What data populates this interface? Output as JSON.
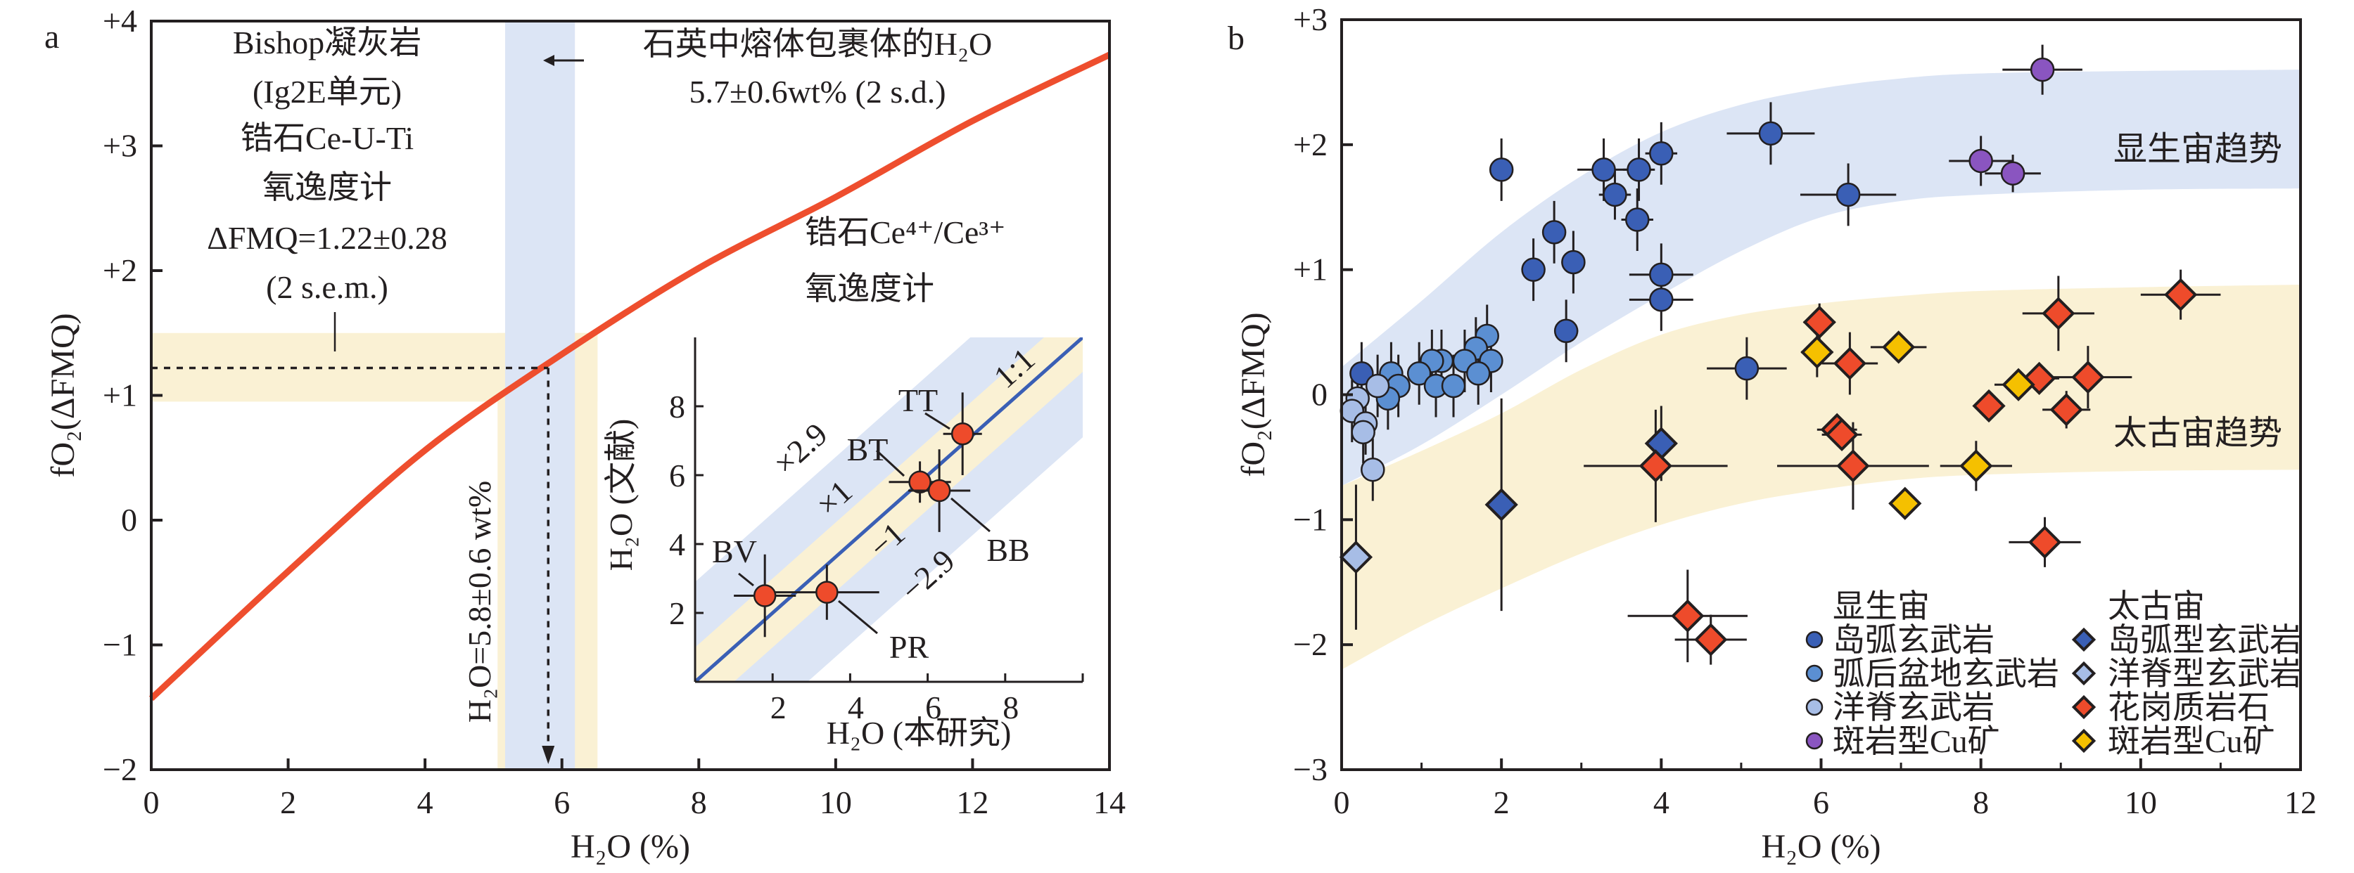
{
  "colors": {
    "curve": "#ee4e2e",
    "band_blue": "#dce5f5",
    "band_yellow": "#faf1d4",
    "one_to_one": "#3a5fb5",
    "island_arc": "#3a5fb5",
    "back_arc": "#5b8fd2",
    "mor": "#a7bde6",
    "porphyry_phan": "#8a55c0",
    "granitoid": "#ee4b2b",
    "porphyry_arch": "#f5c000",
    "inset_point": "#ee4b2b"
  },
  "chart_data": [
    {
      "panel": "a",
      "type": "line",
      "xlabel": "H₂O (%)",
      "ylabel": "fO₂(ΔFMQ)",
      "xlim": [
        0,
        14
      ],
      "ylim": [
        -2,
        4
      ],
      "xticks": [
        0,
        2,
        4,
        6,
        8,
        10,
        12,
        14
      ],
      "xtick_labels": [
        "0",
        "2",
        "4",
        "6",
        "8",
        "10",
        "12",
        "14"
      ],
      "yticks": [
        -2,
        -1,
        0,
        1,
        2,
        3,
        4
      ],
      "ytick_labels": [
        "−2",
        "−1",
        "0",
        "+1",
        "+2",
        "+3",
        "+4"
      ],
      "grid": false,
      "curve": {
        "name": "锆石Ce⁴⁺/Ce³⁺氧逸度计",
        "x": [
          0,
          2,
          4,
          6,
          8,
          10,
          12,
          14
        ],
        "y": [
          -1.43,
          -0.41,
          0.56,
          1.33,
          2.02,
          2.59,
          3.2,
          3.73
        ]
      },
      "fmq_band": [
        0.95,
        1.5
      ],
      "h2o_band_melt_inclusion": [
        5.17,
        6.19
      ],
      "h2o_band_result": [
        5.06,
        6.52
      ],
      "readout": {
        "x": 5.8,
        "y": 1.22
      },
      "annotations": {
        "bishop": [
          "Bishop凝灰岩",
          "(Ig2E单元)",
          "锆石Ce-U-Ti",
          "氧逸度计",
          "ΔFMQ=1.22±0.28",
          "(2 s.e.m.)"
        ],
        "melt_inclusion": [
          "石英中熔体包裹体的H₂O",
          "5.7±0.6wt% (2 s.d.)"
        ],
        "oxybarometer": [
          "锆石Ce⁴⁺/Ce³⁺",
          "氧逸度计"
        ],
        "result": "H₂O=5.8±0.6 wt%"
      },
      "inset": {
        "type": "scatter",
        "xlabel": "H₂O (本研究)",
        "ylabel": "H₂O (文献)",
        "xlim": [
          0,
          10
        ],
        "ylim": [
          0,
          10
        ],
        "xticks": [
          2,
          4,
          6,
          8
        ],
        "xtick_labels": [
          "2",
          "4",
          "6",
          "8"
        ],
        "yticks": [
          2,
          4,
          6,
          8
        ],
        "ytick_labels": [
          "2",
          "4",
          "6",
          "8"
        ],
        "band_inner": 1,
        "band_outer": 2.9,
        "line_labels": {
          "one_to_one": "1:1",
          "plus_outer": "×2.9",
          "plus_inner": "×1",
          "minus_inner": "−1",
          "minus_outer": "−2.9"
        },
        "points": [
          {
            "label": "BV",
            "x": 1.8,
            "y": 2.5,
            "xerr": 0.8,
            "yerr": 1.2
          },
          {
            "label": "PR",
            "x": 3.4,
            "y": 2.6,
            "xerr": 1.35,
            "yerr": 0.8
          },
          {
            "label": "BT",
            "x": 5.8,
            "y": 5.8,
            "xerr": 0.8,
            "yerr": 0.6
          },
          {
            "label": "BB",
            "x": 6.3,
            "y": 5.55,
            "xerr": 0.8,
            "yerr": 1.2
          },
          {
            "label": "TT",
            "x": 6.9,
            "y": 7.2,
            "xerr": 0.5,
            "yerr": 1.2
          }
        ]
      }
    },
    {
      "panel": "b",
      "type": "scatter",
      "xlabel": "H₂O (%)",
      "ylabel": "fO₂(ΔFMQ)",
      "xlim": [
        0,
        12
      ],
      "ylim": [
        -3,
        3
      ],
      "xticks": [
        0,
        2,
        4,
        6,
        8,
        10,
        12
      ],
      "xtick_labels": [
        "0",
        "2",
        "4",
        "6",
        "8",
        "10",
        "12"
      ],
      "yticks": [
        -3,
        -2,
        -1,
        0,
        1,
        2,
        3
      ],
      "ytick_labels": [
        "−3",
        "−2",
        "−1",
        "0",
        "+1",
        "+2",
        "+3"
      ],
      "grid": false,
      "trend_x": [
        0,
        1,
        2,
        3,
        4,
        5,
        6,
        7,
        8,
        10,
        12
      ],
      "trends": [
        {
          "name": "显生宙趋势",
          "color": "band_blue",
          "upper": [
            0.22,
            0.75,
            1.3,
            1.75,
            2.1,
            2.32,
            2.45,
            2.53,
            2.57,
            2.59,
            2.6
          ],
          "lower": [
            -0.73,
            -0.4,
            0.0,
            0.42,
            0.8,
            1.15,
            1.42,
            1.55,
            1.6,
            1.64,
            1.65
          ]
        },
        {
          "name": "太古宙趋势",
          "color": "band_yellow",
          "upper": [
            -0.73,
            -0.45,
            -0.15,
            0.2,
            0.48,
            0.64,
            0.73,
            0.79,
            0.83,
            0.86,
            0.88
          ],
          "lower": [
            -2.2,
            -1.85,
            -1.55,
            -1.27,
            -1.04,
            -0.87,
            -0.76,
            -0.68,
            -0.64,
            -0.61,
            -0.6
          ]
        }
      ],
      "legend": {
        "placement": "bottom-right",
        "groups": [
          {
            "title": "显生宙",
            "entries": [
              "岛弧玄武岩",
              "弧后盆地玄武岩",
              "洋脊玄武岩",
              "斑岩型Cu矿"
            ]
          },
          {
            "title": "太古宙",
            "entries": [
              "岛弧型玄武岩",
              "洋脊型玄武岩",
              "花岗质岩石",
              "斑岩型Cu矿"
            ]
          }
        ]
      },
      "series": [
        {
          "name": "岛弧玄武岩",
          "group": "显生宙",
          "marker": "circle",
          "color": "island_arc",
          "points": [
            [
              2.0,
              1.8,
              0.12,
              0.25
            ],
            [
              5.37,
              2.09,
              0.55,
              0.25
            ],
            [
              4.0,
              1.93,
              0.2,
              0.25
            ],
            [
              3.28,
              1.8,
              0.33,
              0.25
            ],
            [
              3.72,
              1.8,
              0.2,
              0.25
            ],
            [
              3.42,
              1.6,
              0.2,
              0.2
            ],
            [
              3.7,
              1.4,
              0.2,
              0.25
            ],
            [
              6.34,
              1.6,
              0.6,
              0.25
            ],
            [
              2.66,
              1.3,
              0.12,
              0.25
            ],
            [
              2.4,
              1.0,
              0.12,
              0.25
            ],
            [
              2.9,
              1.06,
              0.15,
              0.25
            ],
            [
              4.0,
              0.96,
              0.4,
              0.25
            ],
            [
              4.0,
              0.76,
              0.4,
              0.25
            ],
            [
              2.81,
              0.51,
              0.15,
              0.25
            ],
            [
              5.07,
              0.21,
              0.5,
              0.25
            ],
            [
              0.25,
              0.17,
              0.1,
              0.25
            ]
          ]
        },
        {
          "name": "弧后盆地玄武岩",
          "group": "显生宙",
          "marker": "circle",
          "color": "back_arc",
          "points": [
            [
              1.82,
              0.47,
              0.1,
              0.25
            ],
            [
              1.68,
              0.37,
              0.1,
              0.25
            ],
            [
              1.87,
              0.27,
              0.1,
              0.25
            ],
            [
              1.54,
              0.27,
              0.1,
              0.25
            ],
            [
              1.71,
              0.17,
              0.1,
              0.25
            ],
            [
              1.25,
              0.27,
              0.1,
              0.25
            ],
            [
              1.13,
              0.27,
              0.1,
              0.25
            ],
            [
              0.97,
              0.17,
              0.1,
              0.25
            ],
            [
              1.18,
              0.07,
              0.1,
              0.25
            ],
            [
              1.4,
              0.07,
              0.1,
              0.25
            ],
            [
              0.62,
              0.17,
              0.1,
              0.25
            ],
            [
              0.71,
              0.07,
              0.1,
              0.25
            ],
            [
              0.58,
              -0.03,
              0.1,
              0.25
            ]
          ]
        },
        {
          "name": "洋脊玄武岩",
          "group": "显生宙",
          "marker": "circle",
          "color": "mor",
          "points": [
            [
              0.2,
              -0.03,
              0.05,
              0.25
            ],
            [
              0.13,
              -0.13,
              0.05,
              0.25
            ],
            [
              0.45,
              0.07,
              0.05,
              0.25
            ],
            [
              0.3,
              -0.23,
              0.05,
              0.25
            ],
            [
              0.27,
              -0.3,
              0.05,
              0.25
            ],
            [
              0.39,
              -0.6,
              0.05,
              0.25
            ]
          ]
        },
        {
          "name": "斑岩型Cu矿",
          "group": "显生宙",
          "marker": "circle",
          "color": "porphyry_phan",
          "points": [
            [
              8.77,
              2.6,
              0.5,
              0.2
            ],
            [
              8.0,
              1.87,
              0.4,
              0.2
            ],
            [
              8.4,
              1.77,
              0.35,
              0.15
            ]
          ]
        },
        {
          "name": "岛弧型玄武岩",
          "group": "太古宙",
          "marker": "diamond",
          "color": "island_arc",
          "points": [
            [
              4.0,
              -0.39,
              0.1,
              0.3
            ],
            [
              2.0,
              -0.88,
              0.05,
              0.85
            ]
          ]
        },
        {
          "name": "洋脊型玄武岩",
          "group": "太古宙",
          "marker": "diamond",
          "color": "mor",
          "points": [
            [
              0.18,
              -1.3,
              0.05,
              0.58
            ]
          ]
        },
        {
          "name": "花岗质岩石",
          "group": "太古宙",
          "marker": "diamond",
          "color": "granitoid",
          "points": [
            [
              5.98,
              0.58,
              0.2,
              0.15
            ],
            [
              6.36,
              0.25,
              0.35,
              0.25
            ],
            [
              6.2,
              -0.28,
              0.25,
              0.1
            ],
            [
              6.26,
              -0.32,
              0.25,
              0.1
            ],
            [
              6.4,
              -0.57,
              0.95,
              0.35
            ],
            [
              3.93,
              -0.57,
              0.9,
              0.45
            ],
            [
              8.97,
              0.65,
              0.45,
              0.3
            ],
            [
              10.5,
              0.8,
              0.5,
              0.2
            ],
            [
              8.1,
              -0.09,
              0.15,
              0.1
            ],
            [
              8.73,
              0.13,
              0.25,
              0.1
            ],
            [
              9.34,
              0.14,
              0.55,
              0.25
            ],
            [
              9.07,
              -0.12,
              0.3,
              0.15
            ],
            [
              8.8,
              -1.18,
              0.45,
              0.2
            ],
            [
              4.33,
              -1.77,
              0.75,
              0.37
            ],
            [
              4.62,
              -1.96,
              0.45,
              0.2
            ]
          ]
        },
        {
          "name": "斑岩型Cu矿",
          "group": "太古宙",
          "marker": "diamond",
          "color": "porphyry_arch",
          "points": [
            [
              5.95,
              0.34,
              0.2,
              0.2
            ],
            [
              6.97,
              0.38,
              0.35,
              0.1
            ],
            [
              8.47,
              0.08,
              0.3,
              0.1
            ],
            [
              7.94,
              -0.57,
              0.45,
              0.2
            ],
            [
              7.05,
              -0.87,
              0.1,
              0.1
            ]
          ]
        }
      ]
    }
  ]
}
